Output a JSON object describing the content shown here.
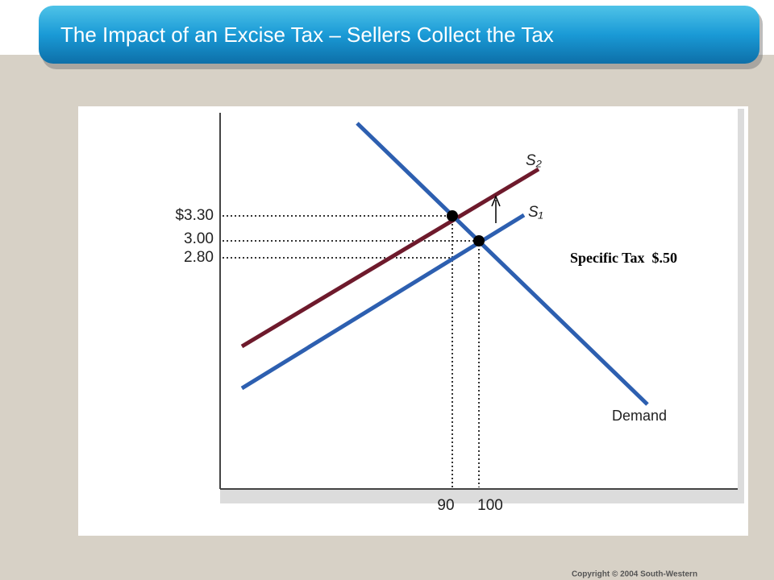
{
  "header": {
    "title": "The Impact of an Excise Tax – Sellers Collect the Tax"
  },
  "diagram": {
    "price_labels": [
      "$3.30",
      "3.00",
      "2.80"
    ],
    "quantity_labels": [
      "90",
      "100"
    ],
    "curves": {
      "s2": "S₂",
      "s1": "S₁",
      "demand": "Demand"
    },
    "annotation": "Specific Tax  $.50"
  },
  "footer": {
    "copyright": "Copyright © 2004  South-Western"
  }
}
